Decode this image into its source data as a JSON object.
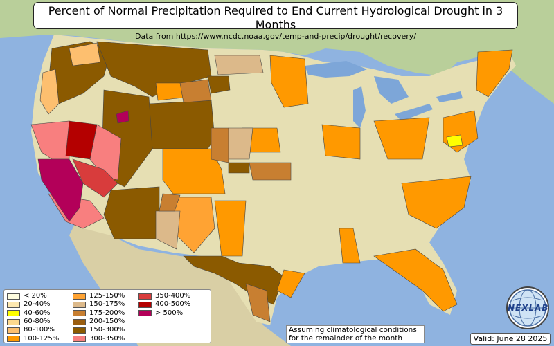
{
  "header": {
    "title": "Percent of Normal Precipitation Required to End Current Hydrological Drought in 3 Months",
    "subtitle": "Data from https://www.ncdc.noaa.gov/temp-and-precip/drought/recovery/"
  },
  "legend": [
    {
      "label": "< 20%",
      "color": "#fffde0"
    },
    {
      "label": "20-40%",
      "color": "#fde8b0"
    },
    {
      "label": "40-60%",
      "color": "#ffff00"
    },
    {
      "label": "60-80%",
      "color": "#fed98e"
    },
    {
      "label": "80-100%",
      "color": "#fdbf6f"
    },
    {
      "label": "100-125%",
      "color": "#ff9900"
    },
    {
      "label": "125-150%",
      "color": "#ffa333"
    },
    {
      "label": "150-175%",
      "color": "#dcb98a"
    },
    {
      "label": "175-200%",
      "color": "#c87f31"
    },
    {
      "label": "200-150%",
      "color": "#9a5e10"
    },
    {
      "label": "150-300%",
      "color": "#8b5a00"
    },
    {
      "label": "300-350%",
      "color": "#f87f7f"
    },
    {
      "label": "350-400%",
      "color": "#d83c3c"
    },
    {
      "label": "400-500%",
      "color": "#b40000"
    },
    {
      "label": "> 500%",
      "color": "#b30059"
    }
  ],
  "note": {
    "line1": "Assuming climatological conditions",
    "line2": "for the remainder of the month"
  },
  "valid": "Valid: June 28 2025",
  "logo": {
    "text": "NEXLAB"
  },
  "colors": {
    "ocean": "#8fb3e0",
    "land": "#e6dfb3",
    "canada": "#b9cf9a",
    "mexico": "#d9cfa5",
    "lakes": "#7da6d8"
  }
}
